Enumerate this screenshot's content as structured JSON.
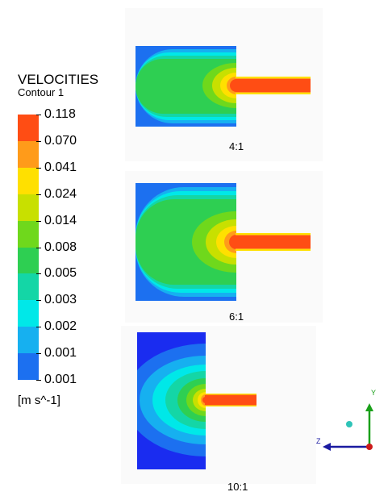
{
  "legend": {
    "title": "VELOCITIES",
    "subtitle": "Contour 1",
    "units": "[m s^-1]",
    "levels": [
      {
        "label": "0.118",
        "color": "#ff4d14"
      },
      {
        "label": "0.070",
        "color": "#ff9b1a"
      },
      {
        "label": "0.041",
        "color": "#ffe000"
      },
      {
        "label": "0.024",
        "color": "#c8e000"
      },
      {
        "label": "0.014",
        "color": "#6fd81c"
      },
      {
        "label": "0.008",
        "color": "#2ecf52"
      },
      {
        "label": "0.005",
        "color": "#14d6a6"
      },
      {
        "label": "0.003",
        "color": "#00e8e8"
      },
      {
        "label": "0.002",
        "color": "#16b0f0"
      },
      {
        "label": "0.001",
        "color": "#1c70f0"
      },
      {
        "label": "0.001",
        "color": "#1a2cf0"
      }
    ]
  },
  "panels": [
    {
      "label": "4:1"
    },
    {
      "label": "6:1"
    },
    {
      "label": "10:1"
    }
  ],
  "axes_triad": {
    "y_label": "Y",
    "z_label": "Z"
  }
}
